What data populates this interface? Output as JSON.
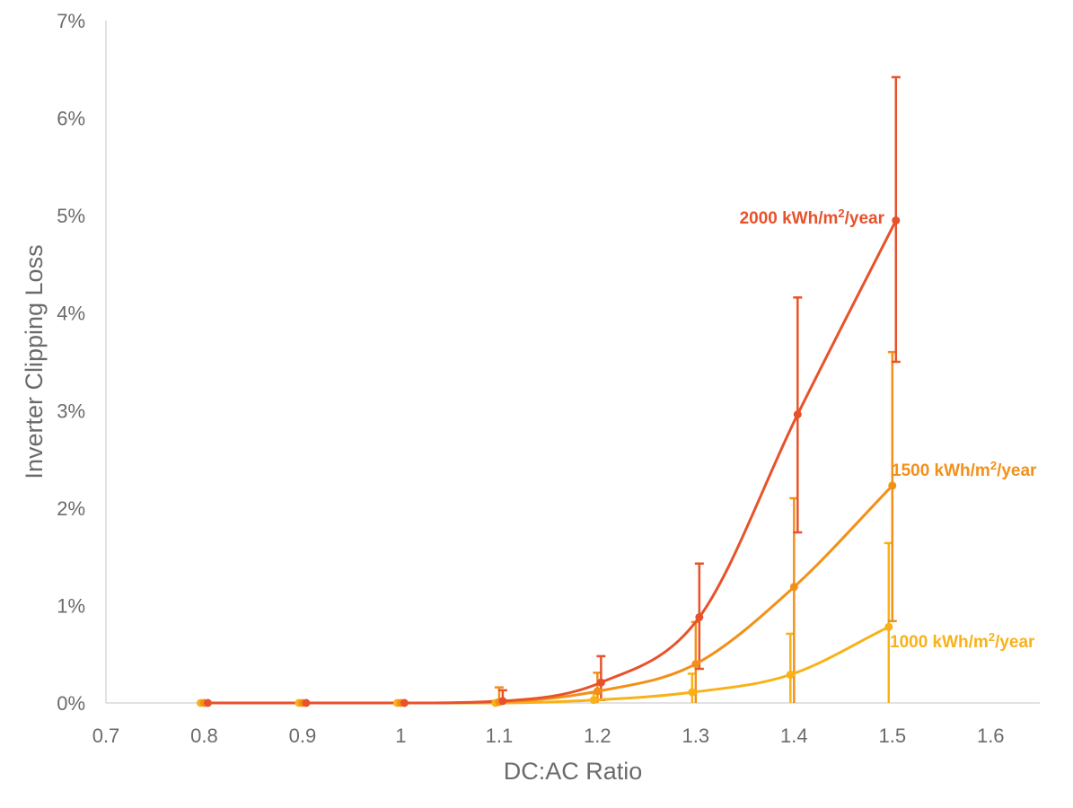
{
  "chart_data": {
    "type": "line",
    "title": "",
    "xlabel": "DC:AC Ratio",
    "ylabel": "Inverter Clipping Loss",
    "xlim": [
      0.7,
      1.65
    ],
    "ylim": [
      0,
      7
    ],
    "x_ticks": [
      "0.7",
      "0.8",
      "0.9",
      "1",
      "1.1",
      "1.2",
      "1.3",
      "1.4",
      "1.5",
      "1.6"
    ],
    "y_ticks": [
      "0%",
      "1%",
      "2%",
      "3%",
      "4%",
      "5%",
      "6%",
      "7%"
    ],
    "grid": false,
    "legend": "none",
    "series": [
      {
        "label_parts": [
          "2000 kWh/m",
          "2",
          "/year"
        ],
        "color": "#e8522a",
        "x": [
          0.8,
          0.9,
          1.0,
          1.1,
          1.2,
          1.3,
          1.4,
          1.5
        ],
        "y": [
          0.0,
          0.0,
          0.0,
          0.02,
          0.21,
          0.88,
          2.96,
          4.95
        ],
        "err_low": [
          0.0,
          0.0,
          0.0,
          0.0,
          0.03,
          0.35,
          1.75,
          3.5
        ],
        "err_high": [
          0.0,
          0.0,
          0.0,
          0.13,
          0.48,
          1.43,
          4.16,
          6.42
        ]
      },
      {
        "label_parts": [
          "1500 kWh/m",
          "2",
          "/year"
        ],
        "color": "#f39019",
        "x": [
          0.8,
          0.9,
          1.0,
          1.1,
          1.2,
          1.3,
          1.4,
          1.5
        ],
        "y": [
          0.0,
          0.0,
          0.0,
          0.01,
          0.12,
          0.4,
          1.19,
          2.23
        ],
        "err_low": [
          0.0,
          0.0,
          0.0,
          0.0,
          0.0,
          0.0,
          0.0,
          0.84
        ],
        "err_high": [
          0.0,
          0.0,
          0.0,
          0.16,
          0.31,
          0.83,
          2.1,
          3.6
        ]
      },
      {
        "label_parts": [
          "1000 kWh/m",
          "2",
          "/year"
        ],
        "color": "#f8b218",
        "x": [
          0.8,
          0.9,
          1.0,
          1.1,
          1.2,
          1.3,
          1.4,
          1.5
        ],
        "y": [
          0.0,
          0.0,
          0.0,
          0.0,
          0.03,
          0.11,
          0.29,
          0.78
        ],
        "err_low": [
          0.0,
          0.0,
          0.0,
          0.0,
          0.0,
          0.0,
          0.0,
          0.0
        ],
        "err_high": [
          0.0,
          0.0,
          0.0,
          0.02,
          0.1,
          0.3,
          0.71,
          1.64
        ]
      }
    ]
  }
}
